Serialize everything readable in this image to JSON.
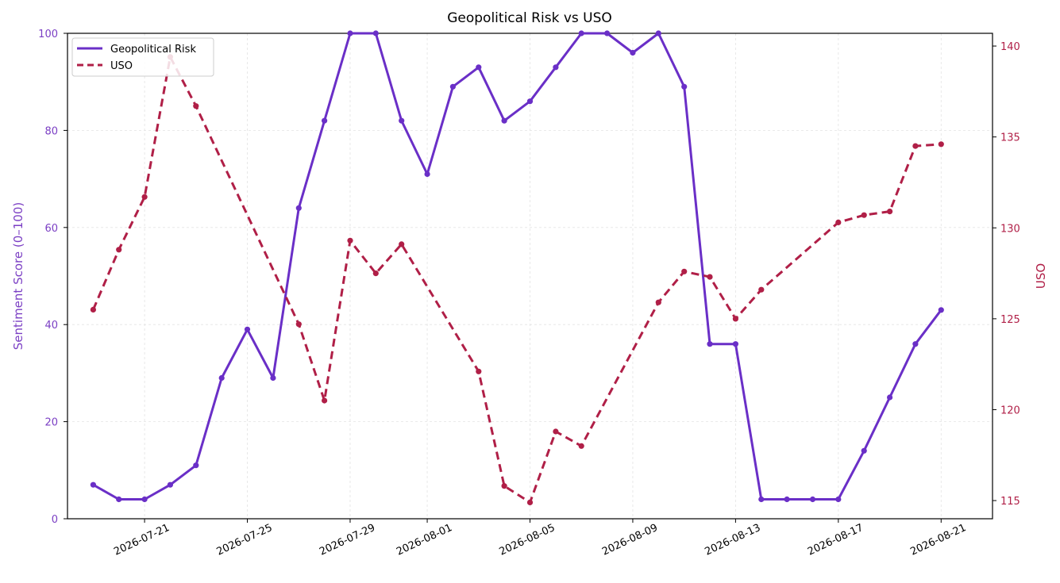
{
  "chart_data": {
    "type": "line",
    "title": "Geopolitical Risk vs USO",
    "xlabel": "",
    "x": [
      "2026-07-19",
      "2026-07-20",
      "2026-07-21",
      "2026-07-22",
      "2026-07-23",
      "2026-07-24",
      "2026-07-25",
      "2026-07-26",
      "2026-07-27",
      "2026-07-28",
      "2026-07-29",
      "2026-07-30",
      "2026-07-31",
      "2026-08-01",
      "2026-08-02",
      "2026-08-03",
      "2026-08-04",
      "2026-08-05",
      "2026-08-06",
      "2026-08-07",
      "2026-08-08",
      "2026-08-09",
      "2026-08-10",
      "2026-08-11",
      "2026-08-12",
      "2026-08-13",
      "2026-08-14",
      "2026-08-15",
      "2026-08-16",
      "2026-08-17",
      "2026-08-18",
      "2026-08-19",
      "2026-08-20",
      "2026-08-21",
      "2026-08-22"
    ],
    "x_ticks": [
      "2026-07-21",
      "2026-07-25",
      "2026-07-29",
      "2026-08-01",
      "2026-08-05",
      "2026-08-09",
      "2026-08-13",
      "2026-08-17",
      "2026-08-21"
    ],
    "xlim": [
      "2026-07-18",
      "2026-08-23"
    ],
    "grid": true,
    "legend_position": "top-left",
    "series": [
      {
        "name": "Geopolitical Risk",
        "axis": "left",
        "color": "#6a2fc7",
        "style": "solid",
        "values": [
          7,
          4,
          4,
          7,
          11,
          29,
          39,
          29,
          64,
          82,
          100,
          100,
          82,
          71,
          89,
          93,
          82,
          86,
          93,
          100,
          100,
          96,
          100,
          89,
          36,
          36,
          4,
          4,
          4,
          4,
          14,
          25,
          36,
          43,
          null
        ]
      },
      {
        "name": "USO",
        "axis": "right",
        "color": "#b01f47",
        "style": "dashed",
        "values": [
          125.5,
          128.8,
          131.7,
          139.4,
          136.7,
          null,
          null,
          null,
          124.7,
          120.5,
          129.3,
          127.5,
          129.1,
          null,
          null,
          122.1,
          115.8,
          114.9,
          118.8,
          118.0,
          null,
          null,
          125.9,
          127.6,
          127.3,
          125.0,
          126.6,
          null,
          null,
          130.3,
          130.7,
          130.9,
          134.5,
          134.6,
          null
        ]
      }
    ],
    "y_left": {
      "label": "Sentiment Score (0–100)",
      "lim": [
        0,
        100
      ],
      "ticks": [
        "0",
        "20",
        "40",
        "60",
        "80",
        "100"
      ],
      "color": "#7b3fc4"
    },
    "y_right": {
      "label": "USO",
      "lim": [
        114.0,
        140.7
      ],
      "ticks": [
        "115",
        "120",
        "125",
        "130",
        "135",
        "140"
      ],
      "color": "#b01f47"
    }
  }
}
